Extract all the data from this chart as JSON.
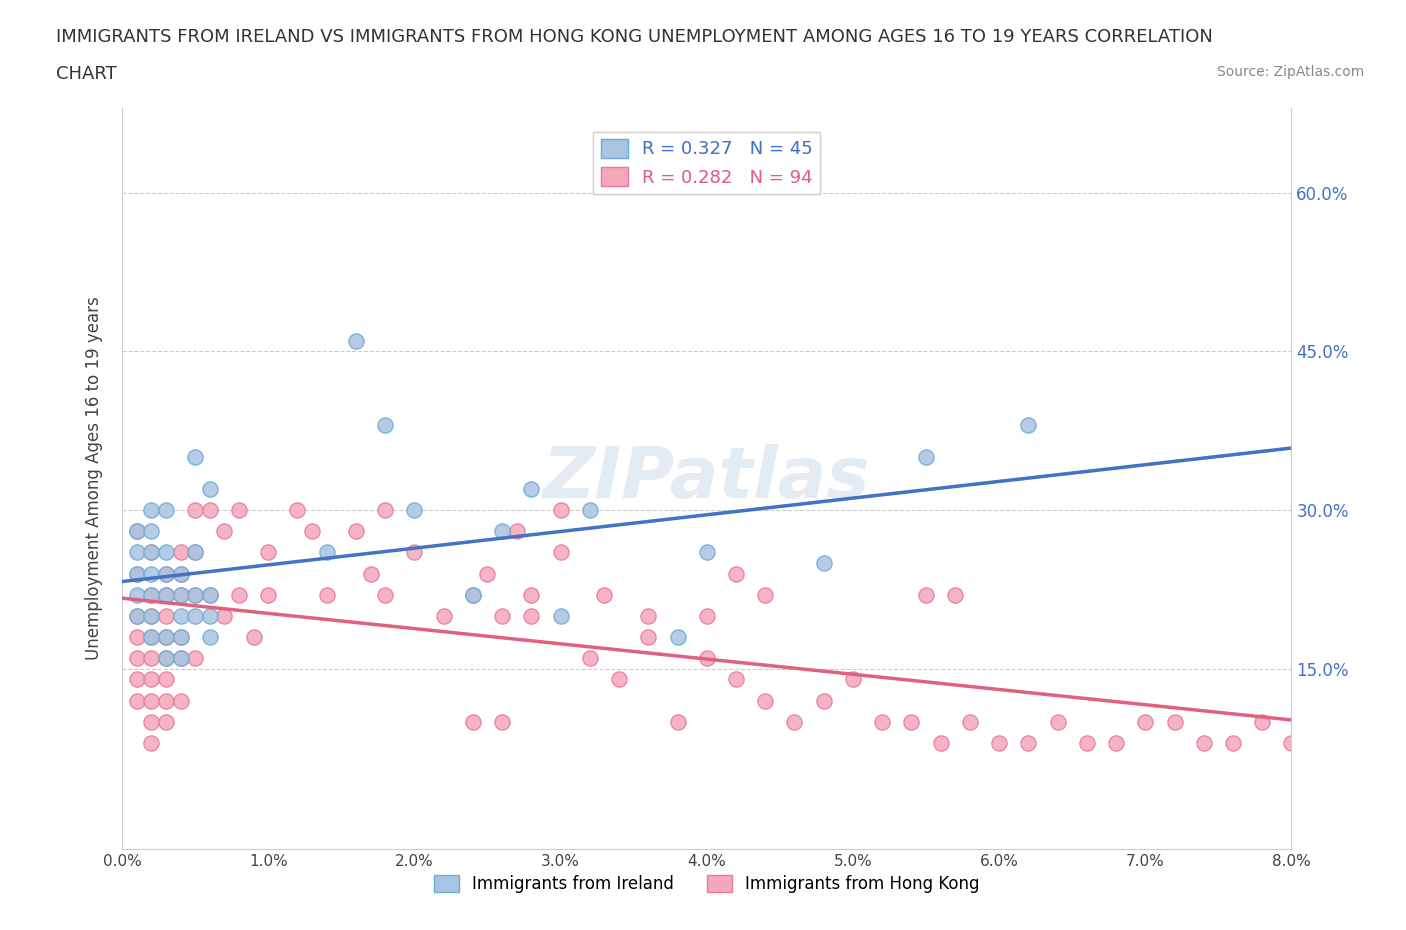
{
  "title": "IMMIGRANTS FROM IRELAND VS IMMIGRANTS FROM HONG KONG UNEMPLOYMENT AMONG AGES 16 TO 19 YEARS CORRELATION\nCHART",
  "source": "Source: ZipAtlas.com",
  "xlabel": "",
  "ylabel": "Unemployment Among Ages 16 to 19 years",
  "xlim": [
    0.0,
    0.08
  ],
  "ylim": [
    -0.02,
    0.68
  ],
  "xticks": [
    0.0,
    0.01,
    0.02,
    0.03,
    0.04,
    0.05,
    0.06,
    0.07,
    0.08
  ],
  "xticklabels": [
    "0.0%",
    "1.0%",
    "2.0%",
    "3.0%",
    "4.0%",
    "5.0%",
    "6.0%",
    "7.0%",
    "8.0%"
  ],
  "yticks": [
    0.0,
    0.15,
    0.3,
    0.45,
    0.6
  ],
  "yticklabels": [
    "",
    "15.0%",
    "30.0%",
    "45.0%",
    "60.0%"
  ],
  "right_yticks": [
    0.0,
    0.15,
    0.3,
    0.45,
    0.6
  ],
  "right_yticklabels": [
    "",
    "15.0%",
    "30.0%",
    "45.0%",
    "60.0%"
  ],
  "ireland_color": "#a8c4e0",
  "ireland_edge": "#6aaed6",
  "hk_color": "#f4a7b9",
  "hk_edge": "#e87a99",
  "ireland_line_color": "#4472c4",
  "hk_line_color": "#e06080",
  "trend_dash_color": "#b0b0b0",
  "R_ireland": 0.327,
  "N_ireland": 45,
  "R_hk": 0.282,
  "N_hk": 94,
  "legend_label_ireland": "Immigrants from Ireland",
  "legend_label_hk": "Immigrants from Hong Kong",
  "watermark": "ZIPatlas",
  "ireland_x": [
    0.001,
    0.001,
    0.001,
    0.001,
    0.001,
    0.002,
    0.002,
    0.002,
    0.002,
    0.002,
    0.002,
    0.002,
    0.003,
    0.003,
    0.003,
    0.003,
    0.003,
    0.003,
    0.004,
    0.004,
    0.004,
    0.004,
    0.004,
    0.005,
    0.005,
    0.005,
    0.005,
    0.006,
    0.006,
    0.006,
    0.006,
    0.014,
    0.016,
    0.018,
    0.02,
    0.024,
    0.026,
    0.028,
    0.03,
    0.032,
    0.038,
    0.04,
    0.048,
    0.055,
    0.062
  ],
  "ireland_y": [
    0.2,
    0.22,
    0.24,
    0.26,
    0.28,
    0.18,
    0.2,
    0.22,
    0.24,
    0.26,
    0.28,
    0.3,
    0.16,
    0.18,
    0.22,
    0.24,
    0.26,
    0.3,
    0.16,
    0.18,
    0.2,
    0.22,
    0.24,
    0.2,
    0.22,
    0.26,
    0.35,
    0.18,
    0.2,
    0.22,
    0.32,
    0.26,
    0.46,
    0.38,
    0.3,
    0.22,
    0.28,
    0.32,
    0.2,
    0.3,
    0.18,
    0.26,
    0.25,
    0.35,
    0.38
  ],
  "hk_x": [
    0.001,
    0.001,
    0.001,
    0.001,
    0.001,
    0.001,
    0.001,
    0.002,
    0.002,
    0.002,
    0.002,
    0.002,
    0.002,
    0.002,
    0.002,
    0.002,
    0.003,
    0.003,
    0.003,
    0.003,
    0.003,
    0.003,
    0.003,
    0.003,
    0.004,
    0.004,
    0.004,
    0.004,
    0.004,
    0.004,
    0.005,
    0.005,
    0.005,
    0.005,
    0.006,
    0.006,
    0.007,
    0.007,
    0.008,
    0.008,
    0.009,
    0.01,
    0.01,
    0.012,
    0.013,
    0.014,
    0.016,
    0.017,
    0.018,
    0.018,
    0.02,
    0.022,
    0.024,
    0.025,
    0.026,
    0.027,
    0.028,
    0.03,
    0.032,
    0.033,
    0.034,
    0.036,
    0.038,
    0.04,
    0.042,
    0.044,
    0.046,
    0.048,
    0.05,
    0.052,
    0.054,
    0.056,
    0.058,
    0.06,
    0.062,
    0.064,
    0.066,
    0.068,
    0.07,
    0.072,
    0.074,
    0.076,
    0.078,
    0.08,
    0.055,
    0.057,
    0.042,
    0.044,
    0.04,
    0.036,
    0.03,
    0.028,
    0.026,
    0.024
  ],
  "hk_y": [
    0.28,
    0.24,
    0.2,
    0.18,
    0.16,
    0.14,
    0.12,
    0.26,
    0.22,
    0.2,
    0.18,
    0.16,
    0.14,
    0.12,
    0.1,
    0.08,
    0.24,
    0.22,
    0.2,
    0.18,
    0.16,
    0.14,
    0.12,
    0.1,
    0.26,
    0.24,
    0.22,
    0.18,
    0.16,
    0.12,
    0.3,
    0.26,
    0.22,
    0.16,
    0.3,
    0.22,
    0.28,
    0.2,
    0.3,
    0.22,
    0.18,
    0.26,
    0.22,
    0.3,
    0.28,
    0.22,
    0.28,
    0.24,
    0.3,
    0.22,
    0.26,
    0.2,
    0.22,
    0.24,
    0.2,
    0.28,
    0.22,
    0.3,
    0.16,
    0.22,
    0.14,
    0.18,
    0.1,
    0.16,
    0.14,
    0.12,
    0.1,
    0.12,
    0.14,
    0.1,
    0.1,
    0.08,
    0.1,
    0.08,
    0.08,
    0.1,
    0.08,
    0.08,
    0.1,
    0.1,
    0.08,
    0.08,
    0.1,
    0.08,
    0.22,
    0.22,
    0.24,
    0.22,
    0.2,
    0.2,
    0.26,
    0.2,
    0.1,
    0.1
  ]
}
